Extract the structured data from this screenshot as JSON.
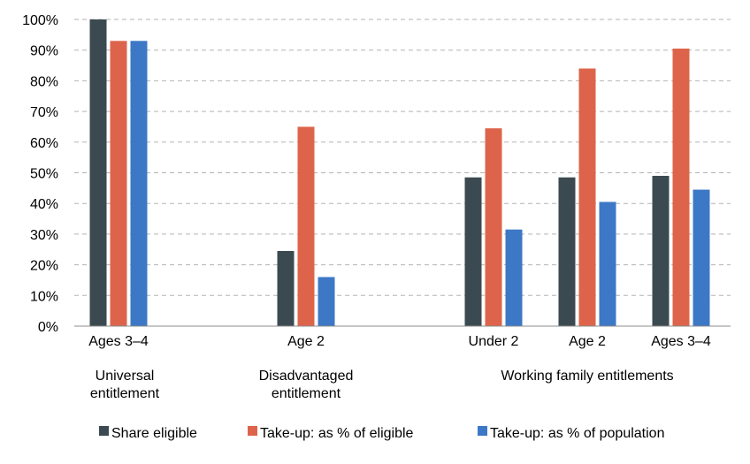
{
  "chart_data": {
    "type": "bar",
    "categories": [
      "Ages 3–4",
      "Age 2",
      "Under 2",
      "Age 2",
      "Ages 3–4"
    ],
    "groups": [
      {
        "label_lines": [
          "Universal",
          "entitlement"
        ],
        "categories": [
          0
        ]
      },
      {
        "label_lines": [
          "Disadvantaged",
          "entitlement"
        ],
        "categories": [
          1
        ]
      },
      {
        "label_lines": [
          "Working family entitlements"
        ],
        "categories": [
          2,
          3,
          4
        ]
      }
    ],
    "series": [
      {
        "name": "Share eligible",
        "color": "#3b4a50",
        "values": [
          100,
          24.5,
          48.5,
          48.5,
          49
        ]
      },
      {
        "name": "Take-up: as % of eligible",
        "color": "#dd644b",
        "values": [
          93,
          65,
          64.5,
          84,
          90.5
        ]
      },
      {
        "name": "Take-up: as % of population",
        "color": "#3d78c6",
        "values": [
          93,
          null,
          31.5,
          40.5,
          44.5
        ]
      }
    ],
    "extra_bars": [
      {
        "category": 1,
        "series": 2,
        "value": 16
      }
    ],
    "ylim": [
      0,
      100
    ],
    "yticks": [
      "0%",
      "10%",
      "20%",
      "30%",
      "40%",
      "50%",
      "60%",
      "70%",
      "80%",
      "90%",
      "100%"
    ],
    "grid": true,
    "legend_position": "bottom"
  }
}
